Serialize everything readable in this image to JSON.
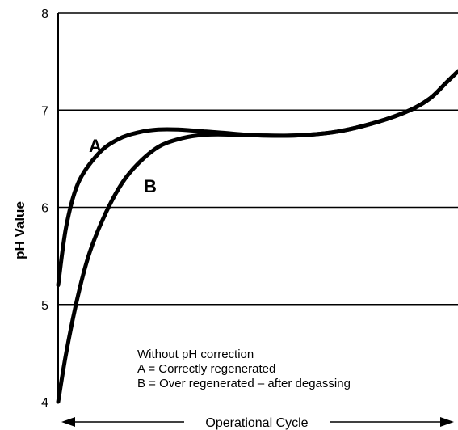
{
  "chart_data": {
    "type": "line",
    "ylabel": "pH Value",
    "xlabel": "Operational Cycle",
    "ylim": [
      4,
      8
    ],
    "yticks": [
      "4",
      "5",
      "6",
      "7",
      "8"
    ],
    "grid": true,
    "series": [
      {
        "name": "A",
        "x": [
          0.0,
          0.02,
          0.05,
          0.1,
          0.15,
          0.2,
          0.25,
          0.3,
          0.4,
          0.5,
          0.6,
          0.7,
          0.8,
          0.88,
          0.93,
          0.97,
          1.0
        ],
        "y": [
          5.2,
          5.8,
          6.25,
          6.55,
          6.7,
          6.77,
          6.8,
          6.8,
          6.77,
          6.74,
          6.74,
          6.78,
          6.88,
          7.0,
          7.12,
          7.28,
          7.4
        ]
      },
      {
        "name": "B",
        "x": [
          0.0,
          0.02,
          0.05,
          0.08,
          0.12,
          0.16,
          0.2,
          0.25,
          0.3,
          0.35,
          0.4,
          0.5,
          0.6,
          0.7,
          0.8,
          0.88,
          0.93,
          0.97,
          1.0
        ],
        "y": [
          4.0,
          4.5,
          5.1,
          5.55,
          5.95,
          6.25,
          6.45,
          6.62,
          6.7,
          6.74,
          6.75,
          6.74,
          6.74,
          6.78,
          6.88,
          7.0,
          7.12,
          7.28,
          7.4
        ]
      }
    ],
    "annotations": [
      "Without pH correction",
      "A = Correctly regenerated",
      "B = Over regenerated – after degassing"
    ]
  }
}
